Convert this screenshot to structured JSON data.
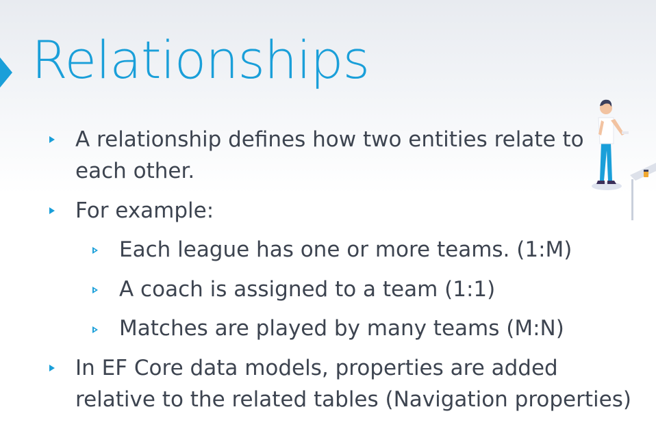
{
  "slide": {
    "title": "Relationships",
    "bullets": [
      {
        "level": 1,
        "lines": [
          "A relationship defines how two entities relate to",
          "each other."
        ]
      },
      {
        "level": 1,
        "lines": [
          "For example:"
        ]
      },
      {
        "level": 2,
        "lines": [
          "Each league has one or more teams. (1:M)"
        ]
      },
      {
        "level": 2,
        "lines": [
          "A coach is assigned to a team (1:1)"
        ]
      },
      {
        "level": 2,
        "lines": [
          "Matches are played by many teams (M:N)"
        ]
      },
      {
        "level": 1,
        "lines": [
          "In EF Core data models, properties are added",
          "relative to the related tables (Navigation properties)"
        ]
      }
    ]
  },
  "colors": {
    "accent": "#1a9fd9",
    "text": "#3d4450"
  },
  "icons": {
    "title_marker": "triangle-right-icon",
    "bullet_marker": "triangle-right-icon",
    "illustration": "person-at-table-illustration"
  }
}
